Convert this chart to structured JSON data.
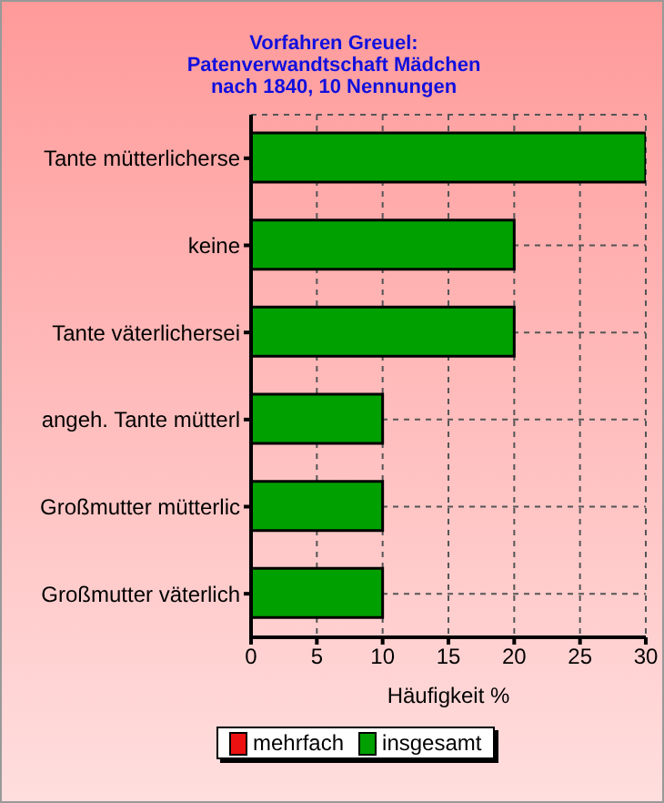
{
  "chart_data": {
    "type": "bar",
    "orientation": "horizontal",
    "stacked": true,
    "title": "Vorfahren Greuel:\nPatenverwandtschaft Mädchen\nnach 1840, 10 Nennungen",
    "xlabel": "Häufigkeit %",
    "categories": [
      "Tante mütterlicherse",
      "keine",
      "Tante väterlichersei",
      "angeh. Tante mütterl",
      "Großmutter mütterlic",
      "Großmutter väterlich"
    ],
    "series": [
      {
        "name": "mehrfach",
        "color": "#ee1111",
        "values": [
          null,
          null,
          null,
          null,
          null,
          null
        ]
      },
      {
        "name": "insgesamt",
        "color": "#00a000",
        "values": [
          30,
          20,
          20,
          10,
          10,
          10
        ]
      }
    ],
    "xlim": [
      0,
      30
    ],
    "xticks": [
      0,
      5,
      10,
      15,
      20,
      25,
      30
    ],
    "grid": true,
    "legend": "bottom"
  }
}
